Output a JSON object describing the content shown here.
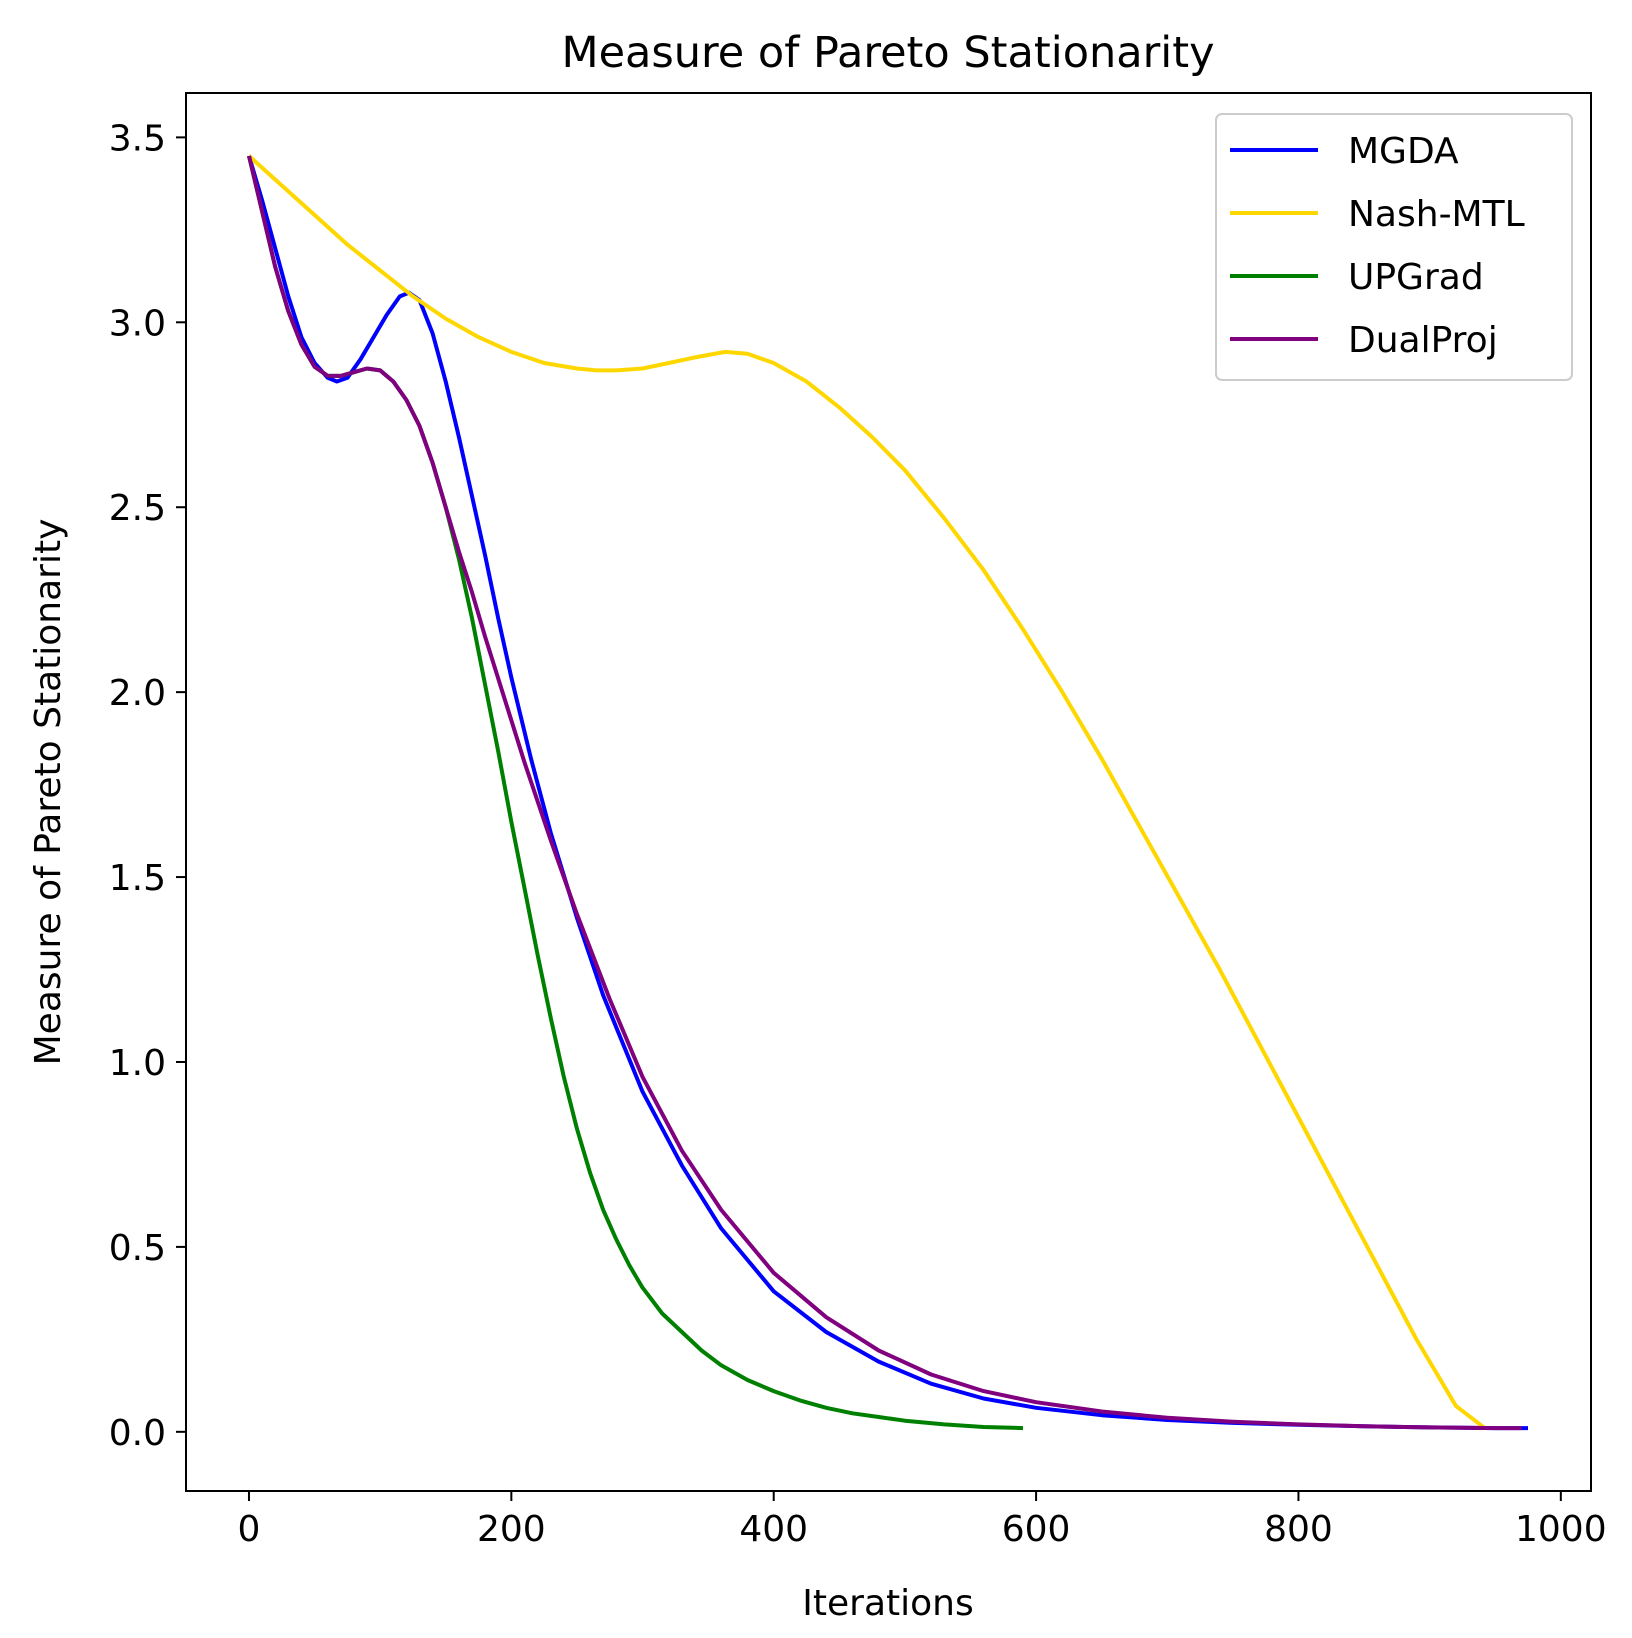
{
  "chart_data": {
    "type": "line",
    "title": "Measure of Pareto Stationarity",
    "xlabel": "Iterations",
    "ylabel": "Measure of Pareto Stationarity",
    "xlim": [
      -48,
      1023
    ],
    "ylim": [
      -0.16,
      3.62
    ],
    "xticks": [
      0,
      200,
      400,
      600,
      800,
      1000
    ],
    "xtick_labels": [
      "0",
      "200",
      "400",
      "600",
      "800",
      "1000"
    ],
    "yticks": [
      0.0,
      0.5,
      1.0,
      1.5,
      2.0,
      2.5,
      3.0,
      3.5
    ],
    "ytick_labels": [
      "0.0",
      "0.5",
      "1.0",
      "1.5",
      "2.0",
      "2.5",
      "3.0",
      "3.5"
    ],
    "grid": false,
    "legend_position": "top-right",
    "series": [
      {
        "name": "MGDA",
        "color": "#0000ff",
        "x": [
          0,
          10,
          20,
          30,
          40,
          50,
          60,
          67,
          75,
          85,
          95,
          105,
          115,
          122,
          130,
          140,
          150,
          160,
          170,
          180,
          190,
          200,
          215,
          230,
          250,
          270,
          300,
          330,
          360,
          400,
          440,
          480,
          520,
          560,
          600,
          650,
          700,
          750,
          800,
          850,
          900,
          950,
          975
        ],
        "y": [
          3.45,
          3.33,
          3.2,
          3.07,
          2.96,
          2.89,
          2.85,
          2.84,
          2.85,
          2.9,
          2.96,
          3.02,
          3.07,
          3.08,
          3.06,
          2.97,
          2.84,
          2.69,
          2.53,
          2.37,
          2.2,
          2.04,
          1.82,
          1.62,
          1.39,
          1.18,
          0.92,
          0.72,
          0.55,
          0.38,
          0.27,
          0.19,
          0.13,
          0.09,
          0.065,
          0.045,
          0.032,
          0.024,
          0.019,
          0.015,
          0.012,
          0.01,
          0.01
        ]
      },
      {
        "name": "Nash-MTL",
        "color": "#ffd700",
        "x": [
          0,
          25,
          50,
          75,
          100,
          125,
          150,
          175,
          200,
          225,
          250,
          265,
          280,
          300,
          320,
          340,
          363,
          380,
          400,
          425,
          450,
          475,
          500,
          530,
          560,
          590,
          620,
          650,
          680,
          710,
          740,
          770,
          800,
          830,
          860,
          890,
          920,
          942
        ],
        "y": [
          3.45,
          3.37,
          3.29,
          3.21,
          3.14,
          3.07,
          3.01,
          2.96,
          2.92,
          2.89,
          2.875,
          2.87,
          2.87,
          2.875,
          2.89,
          2.905,
          2.92,
          2.915,
          2.89,
          2.84,
          2.77,
          2.69,
          2.6,
          2.47,
          2.33,
          2.17,
          2.0,
          1.82,
          1.63,
          1.44,
          1.25,
          1.05,
          0.85,
          0.65,
          0.45,
          0.25,
          0.07,
          0.01
        ]
      },
      {
        "name": "UPGrad",
        "color": "#008000",
        "x": [
          0,
          10,
          20,
          30,
          40,
          50,
          60,
          70,
          80,
          90,
          100,
          110,
          120,
          130,
          140,
          150,
          160,
          170,
          180,
          190,
          200,
          210,
          220,
          230,
          240,
          250,
          260,
          270,
          280,
          290,
          300,
          315,
          330,
          345,
          360,
          380,
          400,
          420,
          440,
          460,
          480,
          500,
          530,
          560,
          590
        ],
        "y": [
          3.45,
          3.3,
          3.15,
          3.03,
          2.94,
          2.88,
          2.855,
          2.855,
          2.865,
          2.875,
          2.87,
          2.84,
          2.79,
          2.72,
          2.62,
          2.5,
          2.36,
          2.2,
          2.02,
          1.84,
          1.65,
          1.47,
          1.29,
          1.12,
          0.96,
          0.82,
          0.7,
          0.6,
          0.52,
          0.45,
          0.39,
          0.32,
          0.27,
          0.22,
          0.18,
          0.14,
          0.11,
          0.085,
          0.065,
          0.05,
          0.04,
          0.03,
          0.02,
          0.013,
          0.01
        ]
      },
      {
        "name": "DualProj",
        "color": "#800080",
        "x": [
          0,
          10,
          20,
          30,
          40,
          50,
          60,
          70,
          80,
          90,
          100,
          110,
          120,
          130,
          140,
          150,
          160,
          170,
          180,
          195,
          210,
          230,
          250,
          275,
          300,
          330,
          360,
          400,
          440,
          480,
          520,
          560,
          600,
          650,
          700,
          750,
          800,
          850,
          900,
          950,
          970
        ],
        "y": [
          3.45,
          3.3,
          3.15,
          3.03,
          2.94,
          2.88,
          2.855,
          2.855,
          2.865,
          2.875,
          2.87,
          2.84,
          2.79,
          2.72,
          2.62,
          2.5,
          2.38,
          2.27,
          2.15,
          1.98,
          1.81,
          1.6,
          1.4,
          1.17,
          0.96,
          0.76,
          0.6,
          0.43,
          0.31,
          0.22,
          0.155,
          0.11,
          0.08,
          0.055,
          0.038,
          0.027,
          0.02,
          0.015,
          0.012,
          0.01,
          0.01
        ]
      }
    ]
  }
}
